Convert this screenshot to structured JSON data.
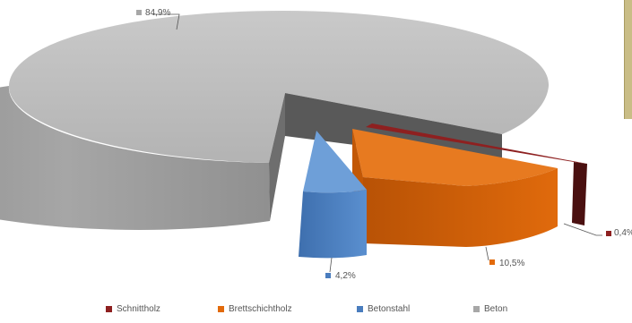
{
  "chart_data": {
    "type": "pie",
    "style": "3d-exploded",
    "categories": [
      "Schnittholz",
      "Brettschichtholz",
      "Betonstahl",
      "Beton"
    ],
    "values": [
      0.4,
      10.5,
      4.2,
      84.9
    ],
    "labels": [
      "0,4%",
      "10,5%",
      "4,2%",
      "84,9%"
    ],
    "colors": [
      "#8e2020",
      "#e26a0b",
      "#4a7dbe",
      "#a7a7a7"
    ],
    "legend_position": "bottom",
    "title": "",
    "unit": "%"
  }
}
